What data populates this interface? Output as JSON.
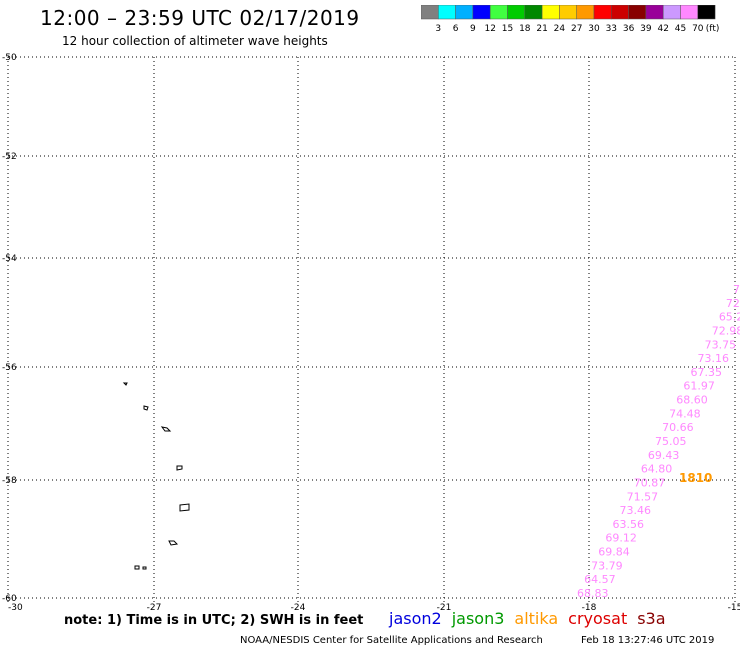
{
  "header": {
    "title": "12:00 – 23:59 UTC 02/17/2019",
    "subtitle": "12 hour collection of altimeter wave heights"
  },
  "colorbar": {
    "colors": [
      "#808080",
      "#00ffff",
      "#00b0ff",
      "#0000ff",
      "#40ff40",
      "#00cc00",
      "#008800",
      "#ffff00",
      "#ffcc00",
      "#ff9900",
      "#ff0000",
      "#cc0000",
      "#880000",
      "#990099",
      "#cc99ff",
      "#ff88ff",
      "#000000"
    ],
    "labels": [
      "3",
      "6",
      "9",
      "12",
      "15",
      "18",
      "21",
      "24",
      "27",
      "30",
      "33",
      "36",
      "39",
      "42",
      "45",
      "70"
    ],
    "unit": "(ft)"
  },
  "map": {
    "lat_labels": [
      "-50",
      "-52",
      "-54",
      "-56",
      "-58",
      "-60"
    ],
    "lon_labels": [
      "-30",
      "-27",
      "-24",
      "-21",
      "-18",
      "-15"
    ],
    "observations": [
      {
        "text": "7",
        "color": "#ff88ff"
      },
      {
        "text": "72",
        "color": "#ff88ff"
      },
      {
        "text": "65.2",
        "color": "#ff88ff"
      },
      {
        "text": "72.98",
        "color": "#ff88ff"
      },
      {
        "text": "73.75",
        "color": "#ff88ff"
      },
      {
        "text": "73.16",
        "color": "#ff88ff"
      },
      {
        "text": "67.35",
        "color": "#ff88ff"
      },
      {
        "text": "61.97",
        "color": "#ff88ff"
      },
      {
        "text": "68.60",
        "color": "#ff88ff"
      },
      {
        "text": "74.48",
        "color": "#ff88ff"
      },
      {
        "text": "70.66",
        "color": "#ff88ff"
      },
      {
        "text": "75.05",
        "color": "#ff88ff"
      },
      {
        "text": "69.43",
        "color": "#ff88ff"
      },
      {
        "text": "64.80",
        "color": "#ff88ff"
      },
      {
        "text": "70.87",
        "color": "#ff88ff"
      },
      {
        "text": "71.57",
        "color": "#ff88ff"
      },
      {
        "text": "73.46",
        "color": "#ff88ff"
      },
      {
        "text": "63.56",
        "color": "#ff88ff"
      },
      {
        "text": "69.12",
        "color": "#ff88ff"
      },
      {
        "text": "69.84",
        "color": "#ff88ff"
      },
      {
        "text": "73.79",
        "color": "#ff88ff"
      },
      {
        "text": "64.57",
        "color": "#ff88ff"
      },
      {
        "text": "68.83",
        "color": "#ff88ff"
      }
    ],
    "highlight": {
      "text": "1810",
      "color": "#ff9900"
    }
  },
  "footer": {
    "note": "note: 1) Time is in UTC; 2) SWH is in feet",
    "satellites": [
      {
        "name": "jason2",
        "color": "#0000dd"
      },
      {
        "name": "jason3",
        "color": "#009900"
      },
      {
        "name": "altika",
        "color": "#ff9900"
      },
      {
        "name": "cryosat",
        "color": "#dd0000"
      },
      {
        "name": "s3a",
        "color": "#880000"
      }
    ],
    "credit": "NOAA/NESDIS Center for Satellite Applications and Research",
    "timestamp": "Feb 18 13:27:46 UTC 2019"
  }
}
